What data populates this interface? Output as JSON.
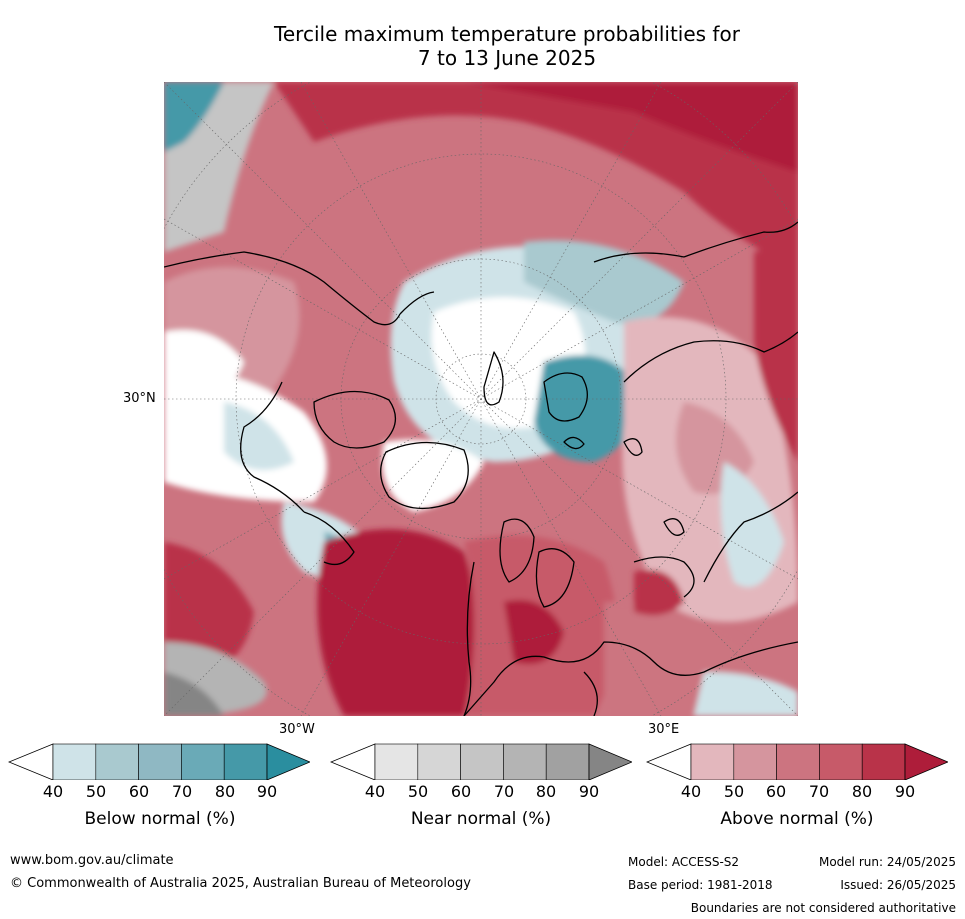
{
  "title": {
    "line1": "Tercile maximum temperature probabilities for",
    "line2": "7 to 13 June 2025"
  },
  "map": {
    "projection": "north-polar-stereographic",
    "lat_label": "30°N",
    "lon_label_west": "30°W",
    "lon_label_east": "30°E",
    "regions": {
      "north_pacific": "above-normal-strong",
      "north_america": "above-normal",
      "canadian_arctic": "below-normal",
      "arctic_ocean": "below-normal",
      "siberia": "below-normal",
      "north_atlantic": "above-normal-strong",
      "europe": "above-normal",
      "central_asia": "above-normal"
    }
  },
  "colorbars": [
    {
      "id": "below",
      "title": "Below normal (%)",
      "ticks": [
        "40",
        "50",
        "60",
        "70",
        "80",
        "90"
      ],
      "colors": [
        "#cfe3e8",
        "#a9c9cf",
        "#8fb8c3",
        "#6aaab7",
        "#4599a8",
        "#2a8e9f"
      ],
      "low_color": "#ffffff"
    },
    {
      "id": "near",
      "title": "Near normal (%)",
      "ticks": [
        "40",
        "50",
        "60",
        "70",
        "80",
        "90"
      ],
      "colors": [
        "#e5e5e5",
        "#d6d6d6",
        "#c5c5c5",
        "#b4b4b4",
        "#a1a1a1",
        "#858585"
      ],
      "low_color": "#ffffff"
    },
    {
      "id": "above",
      "title": "Above normal (%)",
      "ticks": [
        "40",
        "50",
        "60",
        "70",
        "80",
        "90"
      ],
      "colors": [
        "#e3b7bd",
        "#d5959e",
        "#cc7480",
        "#c75a69",
        "#b93349",
        "#ae1d3a"
      ],
      "low_color": "#ffffff"
    }
  ],
  "footer": {
    "website": "www.bom.gov.au/climate",
    "copyright": "© Commonwealth of Australia 2025, Australian Bureau of Meteorology",
    "model": "Model: ACCESS-S2",
    "base_period": "Base period: 1981-2018",
    "model_run": "Model run: 24/05/2025",
    "issued": "Issued: 26/05/2025",
    "disclaimer": "Boundaries are not considered authoritative"
  }
}
